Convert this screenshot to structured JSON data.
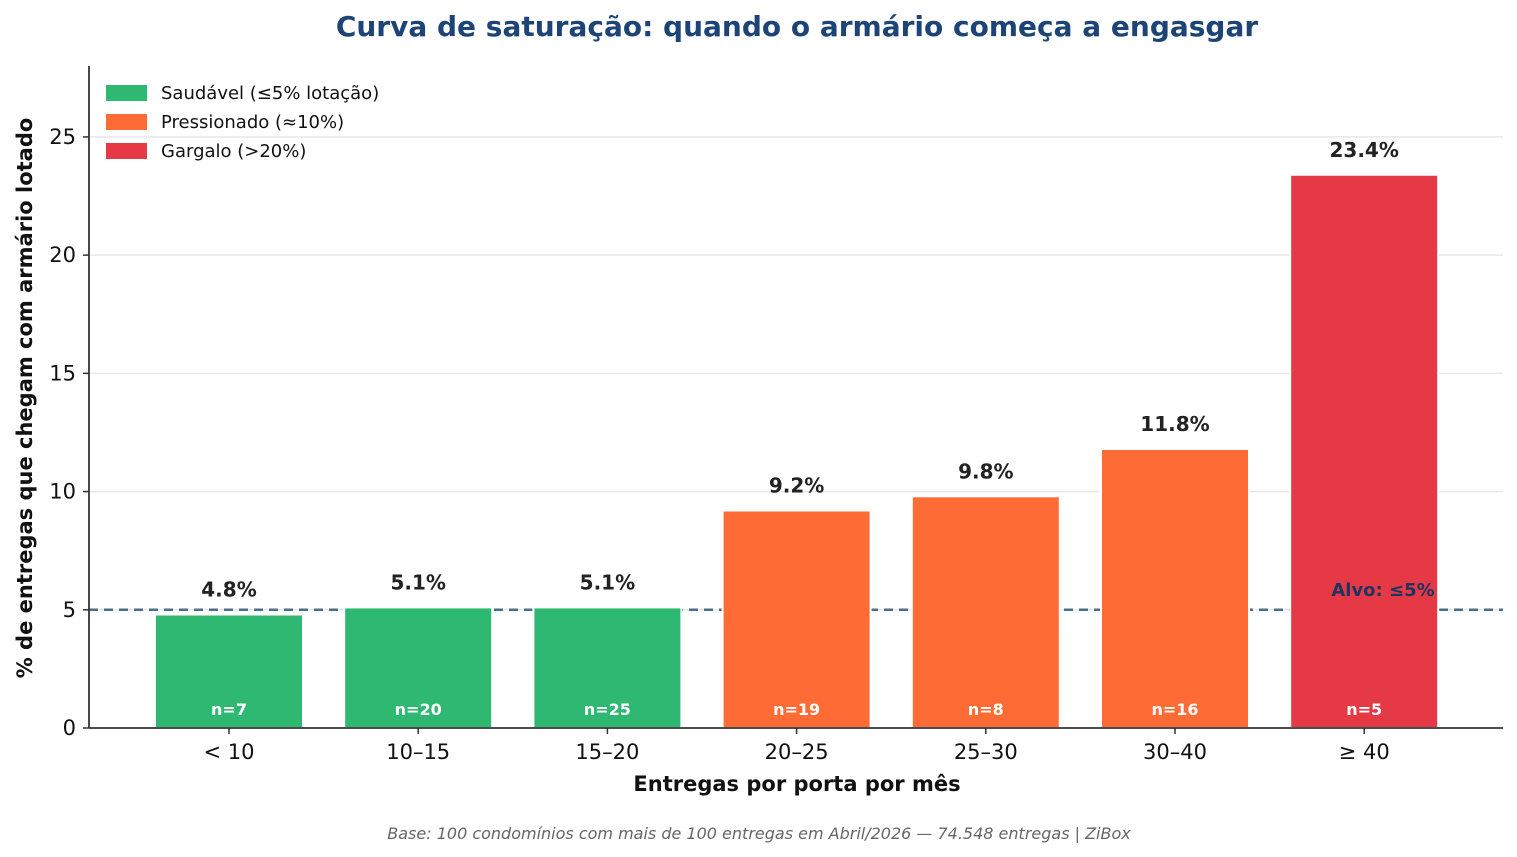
{
  "chart_data": {
    "type": "bar",
    "title": "Curva de saturação: quando o armário começa a engasgar",
    "xlabel": "Entregas por porta por mês",
    "ylabel": "% de entregas que chegam com armário lotado",
    "categories": [
      "< 10",
      "10–15",
      "15–20",
      "20–25",
      "25–30",
      "30–40",
      "≥ 40"
    ],
    "values": [
      4.8,
      5.1,
      5.1,
      9.2,
      9.8,
      11.8,
      23.4
    ],
    "value_labels": [
      "4.8%",
      "5.1%",
      "5.1%",
      "9.2%",
      "9.8%",
      "11.8%",
      "23.4%"
    ],
    "n_labels": [
      "n=7",
      "n=20",
      "n=25",
      "n=19",
      "n=8",
      "n=16",
      "n=5"
    ],
    "bar_groups": [
      0,
      0,
      0,
      1,
      1,
      1,
      2
    ],
    "groups": [
      {
        "name": "Saudável (≤5% lotação)",
        "color": "#2fb872"
      },
      {
        "name": "Pressionado (≈10%)",
        "color": "#ff6b35"
      },
      {
        "name": "Gargalo (>20%)",
        "color": "#e63946"
      }
    ],
    "yticks": [
      0,
      5,
      10,
      15,
      20,
      25
    ],
    "ylim": [
      0,
      28
    ],
    "grid": "horizontal",
    "legend_position": "top-left",
    "target_line": {
      "value": 5,
      "label": "Alvo: ≤5%",
      "color": "#4a6f8a",
      "label_color": "#1d3461"
    },
    "title_color": "#1d4477",
    "footnote": "Base: 100 condomínios com mais de 100 entregas em Abril/2026 — 74.548 entregas | ZiBox"
  }
}
